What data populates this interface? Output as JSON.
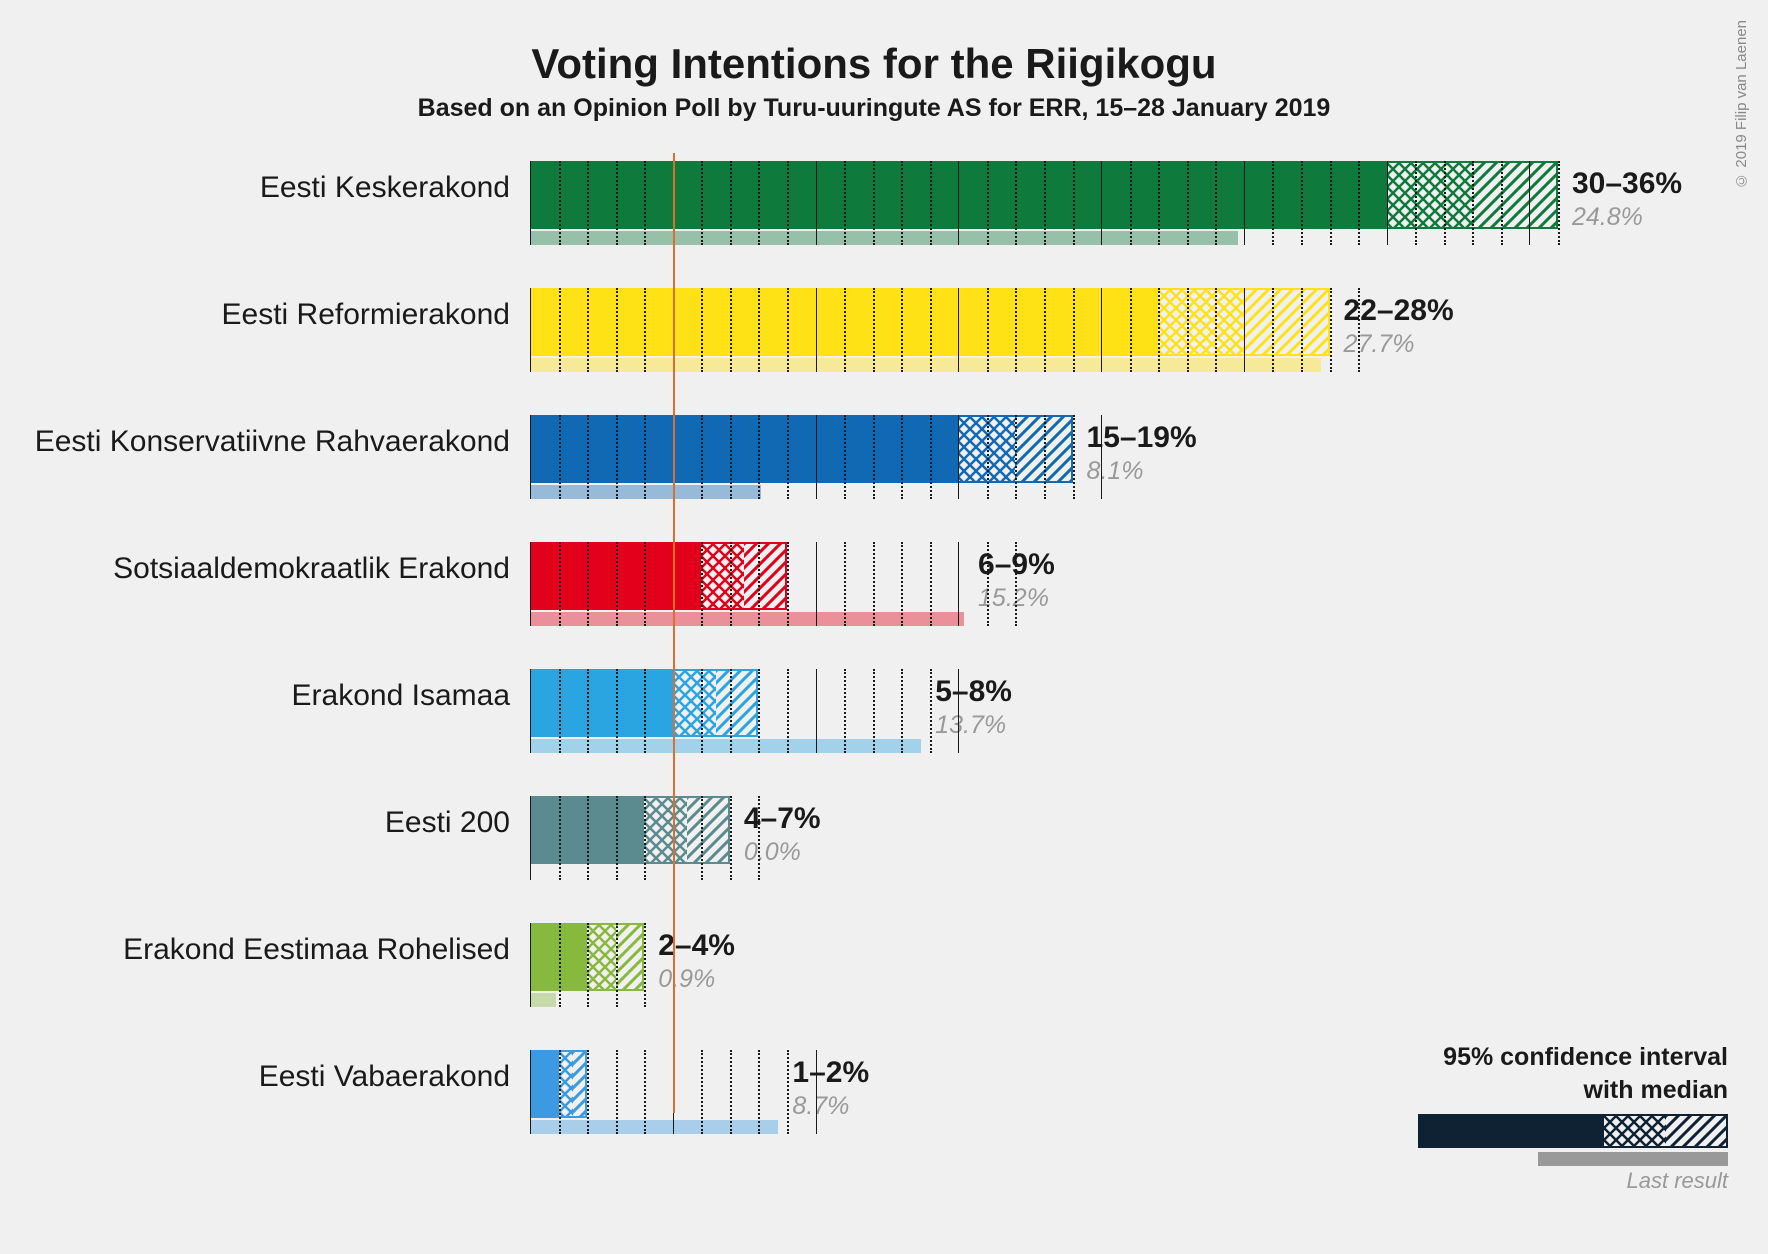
{
  "title": "Voting Intentions for the Riigikogu",
  "subtitle": "Based on an Opinion Poll by Turu-uuringute AS for ERR, 15–28 January 2019",
  "copyright": "© 2019 Filip van Laenen",
  "chart": {
    "type": "bar",
    "x_max": 36,
    "threshold": 5,
    "major_tick_step": 5,
    "minor_tick_step": 1,
    "background_color": "#f0f0f0",
    "grid_major_color": "#1a1a1a",
    "grid_minor_color": "#1a1a1a",
    "threshold_color": "#d97030",
    "label_fontsize": 30,
    "title_fontsize": 42,
    "subtitle_fontsize": 25,
    "range_fontsize": 30,
    "prev_fontsize": 25
  },
  "legend": {
    "line1": "95% confidence interval",
    "line2": "with median",
    "last_result": "Last result",
    "bar_color": "#0e2233"
  },
  "parties": [
    {
      "name": "Eesti Keskerakond",
      "color": "#0e7a3c",
      "low": 30,
      "median": 33,
      "high": 36,
      "prev": 24.8,
      "range_label": "30–36%",
      "prev_label": "24.8%"
    },
    {
      "name": "Eesti Reformierakond",
      "color": "#ffe215",
      "low": 22,
      "median": 25,
      "high": 28,
      "prev": 27.7,
      "range_label": "22–28%",
      "prev_label": "27.7%"
    },
    {
      "name": "Eesti Konservatiivne Rahvaerakond",
      "color": "#1169b4",
      "low": 15,
      "median": 17,
      "high": 19,
      "prev": 8.1,
      "range_label": "15–19%",
      "prev_label": "8.1%"
    },
    {
      "name": "Sotsiaaldemokraatlik Erakond",
      "color": "#e2001a",
      "low": 6,
      "median": 7.5,
      "high": 9,
      "prev": 15.2,
      "range_label": "6–9%",
      "prev_label": "15.2%"
    },
    {
      "name": "Erakond Isamaa",
      "color": "#2aa5e1",
      "low": 5,
      "median": 6.5,
      "high": 8,
      "prev": 13.7,
      "range_label": "5–8%",
      "prev_label": "13.7%"
    },
    {
      "name": "Eesti 200",
      "color": "#5b8a8f",
      "low": 4,
      "median": 5.5,
      "high": 7,
      "prev": 0.0,
      "range_label": "4–7%",
      "prev_label": "0.0%"
    },
    {
      "name": "Erakond Eestimaa Rohelised",
      "color": "#88b93f",
      "low": 2,
      "median": 3,
      "high": 4,
      "prev": 0.9,
      "range_label": "2–4%",
      "prev_label": "0.9%"
    },
    {
      "name": "Eesti Vabaerakond",
      "color": "#3b9ae1",
      "low": 1,
      "median": 1.5,
      "high": 2,
      "prev": 8.7,
      "range_label": "1–2%",
      "prev_label": "8.7%"
    }
  ]
}
